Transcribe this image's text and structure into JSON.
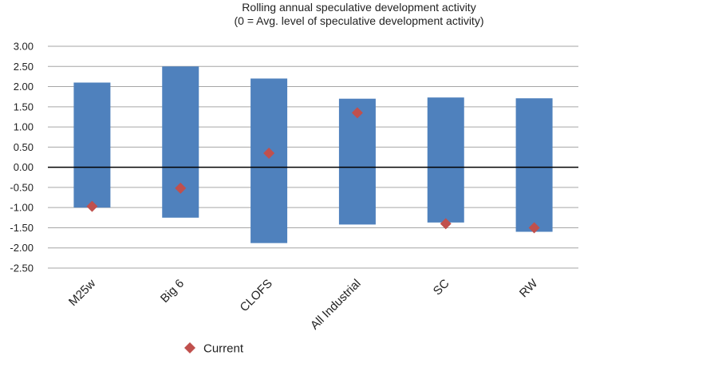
{
  "chart_data": {
    "type": "bar",
    "title_lines": [
      "Rolling annual speculative development activity",
      "(0 = Avg. level of speculative development activity)"
    ],
    "xlabel": "",
    "ylabel": "",
    "categories": [
      "M25w",
      "Big 6",
      "CLOFS",
      "All Industrial",
      "SC",
      "RW"
    ],
    "series": [
      {
        "name": "",
        "kind": "floating-range",
        "low": [
          -1.0,
          -1.25,
          -1.88,
          -1.42,
          -1.37,
          -1.6
        ],
        "high": [
          2.1,
          2.5,
          2.2,
          1.7,
          1.73,
          1.71
        ]
      },
      {
        "name": "Current",
        "kind": "marker",
        "values": [
          -0.97,
          -0.52,
          0.35,
          1.35,
          -1.4,
          -1.5
        ]
      }
    ],
    "ylim": [
      -2.5,
      3.0
    ],
    "yticks": [
      3.0,
      2.5,
      2.0,
      1.5,
      1.0,
      0.5,
      0.0,
      -0.5,
      -1.0,
      -1.5,
      -2.0,
      -2.5
    ],
    "ytick_labels": [
      "3.00",
      "2.50",
      "2.00",
      "1.50",
      "1.00",
      "0.50",
      "0.00",
      "-0.50",
      "-1.00",
      "-1.50",
      "-2.00",
      "-2.50"
    ],
    "grid": true,
    "legend_position": "bottom",
    "legend": [
      {
        "label": "Current",
        "marker": "diamond"
      }
    ],
    "colors": {
      "bar": "#4f81bd",
      "marker": "#c0504d",
      "grid": "#a6a6a6",
      "zero_line": "#000000"
    }
  }
}
